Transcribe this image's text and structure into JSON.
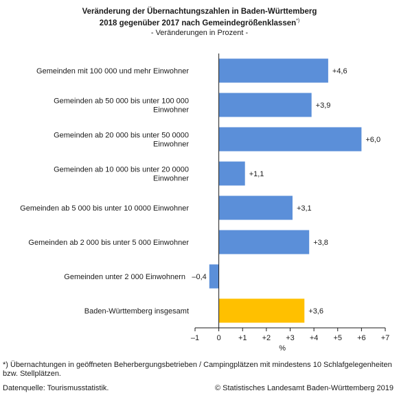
{
  "header": {
    "title_line1": "Veränderung der Übernachtungszahlen in Baden-Württemberg",
    "title_line2": "2018 gegenüber 2017 nach Gemeindegrößenklassen",
    "title_mark": "*)",
    "subtitle": "- Veränderungen in Prozent -"
  },
  "chart_data": {
    "type": "bar",
    "orientation": "horizontal",
    "categories": [
      [
        "Gemeinden mit 100 000 und mehr Einwohner"
      ],
      [
        "Gemeinden ab 50 000 bis unter 100 000",
        "Einwohner"
      ],
      [
        "Gemeinden ab 20 000 bis unter 50 0000",
        "Einwohner"
      ],
      [
        "Gemeinden ab 10 000 bis unter 20 0000",
        "Einwohner"
      ],
      [
        "Gemeinden ab 5 000 bis unter 10 0000 Einwohner"
      ],
      [
        "Gemeinden ab 2 000 bis unter 5 000 Einwohner"
      ],
      [
        "Gemeinden unter 2 000 Einwohnern"
      ],
      [
        "Baden-Württemberg insgesamt"
      ]
    ],
    "values": [
      4.6,
      3.9,
      6.0,
      1.1,
      3.1,
      3.8,
      -0.4,
      3.6
    ],
    "value_labels": [
      "+4,6",
      "+3,9",
      "+6,0",
      "+1,1",
      "+3,1",
      "+3,8",
      "–0,4",
      "+3,6"
    ],
    "xlim": [
      -1,
      7
    ],
    "xticks": [
      -1,
      0,
      1,
      2,
      3,
      4,
      5,
      6,
      7
    ],
    "xtick_labels": [
      "–1",
      "0",
      "+1",
      "+2",
      "+3",
      "+4",
      "+5",
      "+6",
      "+7"
    ],
    "xlabel": "%",
    "grid": false,
    "colors": {
      "bar": "#5b8fd9",
      "total": "#ffc000",
      "axis": "#1a1a1a"
    }
  },
  "footer": {
    "footnote": "*) Übernachtungen in geöffneten Beherbergungsbetrieben / Campingplätzen mit mindestens 10 Schlafgelegenheiten bzw. Stellplätzen.",
    "source": "Datenquelle: Tourismusstatistik.",
    "copyright": "© Statistisches Landesamt Baden-Württemberg 2019"
  }
}
